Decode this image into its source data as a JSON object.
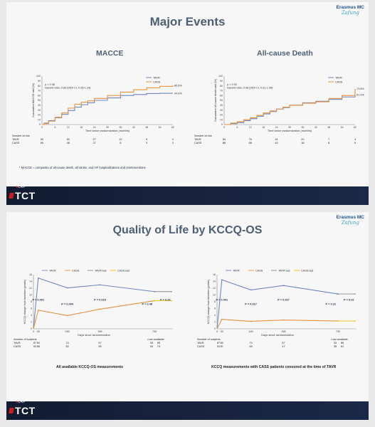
{
  "slide1": {
    "title": "Major Events",
    "logo": {
      "line1": "Erasmus MC",
      "line2": "Zafung"
    },
    "footer": {
      "crf": "CRF",
      "tct": "TCT"
    },
    "footnote": "*  MACCE = composite of all-cause death, all stroke, and HF hospitalizations and reinterventions"
  },
  "slide2": {
    "title": "Quality of Life by KCCQ-OS",
    "logo": {
      "line1": "Erasmus MC",
      "line2": "Zafung"
    },
    "footer": {
      "crf": "CRF",
      "tct": "TCT"
    },
    "caption_left": "All available KCCQ-OS measurements",
    "caption_right": "KCCQ measurements with CASS patients censored at the time of TAVR"
  },
  "colors": {
    "tavr": "#6d86c2",
    "cass": "#e8913d",
    "last": "#f2c200",
    "title": "#4c5f74"
  },
  "chart_data": [
    {
      "type": "line",
      "title": "MACCE",
      "ylabel": "Cumulative MACCE rate (%)",
      "xlabel": "Time since randomization (months)",
      "stats": [
        "p = 0.36",
        "Hazard ratio, 0.83 (95% CI, 0.56-1.24)"
      ],
      "legend": [
        "TAVR",
        "CASS"
      ],
      "end_labels": [
        "80.6%",
        "64.6%"
      ],
      "xlim": [
        0,
        60
      ],
      "ylim": [
        0,
        100
      ],
      "xticks": [
        0,
        6,
        12,
        18,
        24,
        30,
        36,
        42,
        48,
        54,
        60
      ],
      "yticks": [
        0,
        10,
        20,
        30,
        40,
        50,
        60,
        70,
        80,
        90,
        100
      ],
      "series": [
        {
          "name": "TAVR",
          "x": [
            0,
            1,
            3,
            6,
            9,
            12,
            15,
            18,
            21,
            24,
            30,
            36,
            42,
            48,
            54,
            60
          ],
          "y": [
            0,
            3,
            8,
            14,
            21,
            29,
            36,
            41,
            45,
            50,
            55,
            60,
            62,
            64,
            64.6,
            64.6
          ]
        },
        {
          "name": "CASS",
          "x": [
            0,
            1,
            3,
            6,
            9,
            12,
            15,
            18,
            21,
            24,
            30,
            36,
            42,
            48,
            54,
            60
          ],
          "y": [
            0,
            2,
            7,
            15,
            24,
            34,
            42,
            46,
            49,
            54,
            60,
            67,
            72,
            76,
            79,
            80.6
          ]
        }
      ],
      "risk_table": {
        "title": "Number at risk",
        "rows": [
          {
            "label": "TAVR",
            "values": [
              "60",
              "60",
              "27",
              "12",
              "5",
              "2"
            ]
          },
          {
            "label": "CASS",
            "values": [
              "60",
              "46",
              "27",
              "8",
              "3",
              "2"
            ]
          }
        ]
      }
    },
    {
      "type": "line",
      "title": "All-cause Death",
      "ylabel": "Cumulative all-cause death rate (%)",
      "xlabel": "Time since randomization (months)",
      "stats": [
        "p = 0.92",
        "Hazard ratio, 0.96 (95% CI, 0.61-1.56)"
      ],
      "legend": [
        "TAVR",
        "CASS"
      ],
      "end_labels": [
        "73.8%",
        "61.9%"
      ],
      "xlim": [
        0,
        60
      ],
      "ylim": [
        0,
        100
      ],
      "xticks": [
        0,
        6,
        12,
        18,
        24,
        30,
        36,
        42,
        48,
        54,
        60
      ],
      "yticks": [
        0,
        10,
        20,
        30,
        40,
        50,
        60,
        70,
        80,
        90,
        100
      ],
      "series": [
        {
          "name": "TAVR",
          "x": [
            0,
            3,
            6,
            9,
            12,
            15,
            18,
            21,
            24,
            27,
            30,
            36,
            42,
            48,
            54,
            60
          ],
          "y": [
            0,
            2,
            4,
            8,
            12,
            17,
            22,
            27,
            32,
            35,
            40,
            45,
            48,
            52,
            57,
            61.9
          ]
        },
        {
          "name": "CASS",
          "x": [
            0,
            3,
            6,
            9,
            12,
            15,
            18,
            21,
            24,
            27,
            30,
            36,
            42,
            48,
            54,
            60
          ],
          "y": [
            0,
            3,
            6,
            10,
            14,
            19,
            24,
            28,
            32,
            36,
            40,
            44,
            47,
            54,
            60,
            73.8
          ]
        }
      ],
      "risk_table": {
        "title": "Number at risk",
        "rows": [
          {
            "label": "TAVR",
            "values": [
              "84",
              "76",
              "41",
              "20",
              "7",
              "3"
            ]
          },
          {
            "label": "CASS",
            "values": [
              "88",
              "68",
              "42",
              "18",
              "8",
              "5"
            ]
          }
        ]
      }
    },
    {
      "type": "line",
      "ylabel": "KCCQ change from baseline (points)",
      "xlabel": "Days since randomization",
      "legend": [
        "TAVR",
        "CASS",
        "TAVR last",
        "CASS last"
      ],
      "xticks": [
        "0",
        "30",
        "180",
        "365",
        "730"
      ],
      "ylim": [
        0,
        16
      ],
      "yticks": [
        0,
        2,
        4,
        6,
        8,
        10,
        12,
        14,
        16
      ],
      "series": [
        {
          "name": "TAVR",
          "x": [
            0,
            30,
            180,
            365,
            730
          ],
          "y": [
            0,
            15,
            12.1,
            13,
            11
          ]
        },
        {
          "name": "CASS",
          "x": [
            0,
            30,
            180,
            365,
            730
          ],
          "y": [
            0,
            5.5,
            3.9,
            5.8,
            8.3
          ]
        },
        {
          "name": "TAVR last",
          "x": [
            730,
            830
          ],
          "y": [
            11,
            11
          ]
        },
        {
          "name": "CASS last",
          "x": [
            730,
            830
          ],
          "y": [
            8.3,
            8.3
          ]
        }
      ],
      "p_values": [
        {
          "text": "P = 0.001",
          "day": 30
        },
        {
          "text": "P = 0.004",
          "day": 180
        },
        {
          "text": "P = 0.018",
          "day": 365
        },
        {
          "text": "P = 0.48",
          "day": 700
        },
        {
          "text": "P = 0.20",
          "day": 790
        }
      ],
      "subjects_table": {
        "title": "Number of subjects",
        "last_title": "Last available",
        "rows": [
          {
            "label": "TAVR",
            "values": [
              "87",
              "80",
              "74",
              "67"
            ],
            "last": "33",
            "last2": "85"
          },
          {
            "label": "CASS",
            "values": [
              "92",
              "88",
              "82",
              "59"
            ],
            "last": "54",
            "last2": "74"
          }
        ]
      }
    },
    {
      "type": "line",
      "ylabel": "KCCQ change from baseline (points)",
      "xlabel": "Days since randomization",
      "legend": [
        "TAVR",
        "CASS",
        "TAVR last",
        "CASS last"
      ],
      "xticks": [
        "0",
        "30",
        "180",
        "365",
        "730"
      ],
      "ylim": [
        0,
        16
      ],
      "yticks": [
        0,
        2,
        4,
        6,
        8,
        10,
        12,
        14,
        16
      ],
      "series": [
        {
          "name": "TAVR",
          "x": [
            0,
            30,
            180,
            365,
            730
          ],
          "y": [
            0,
            14.5,
            11.5,
            12.8,
            10.3
          ]
        },
        {
          "name": "CASS",
          "x": [
            0,
            30,
            180,
            365,
            730
          ],
          "y": [
            0,
            2.8,
            2.2,
            2.6,
            2.3
          ]
        },
        {
          "name": "TAVR last",
          "x": [
            730,
            830
          ],
          "y": [
            10.3,
            10.3
          ]
        },
        {
          "name": "CASS last",
          "x": [
            730,
            830
          ],
          "y": [
            2.3,
            2.3
          ]
        }
      ],
      "p_values": [
        {
          "text": "P < 0.001",
          "day": 30
        },
        {
          "text": "P = 0.017",
          "day": 180
        },
        {
          "text": "P = 0.017",
          "day": 365
        },
        {
          "text": "P = 0.22",
          "day": 700
        },
        {
          "text": "P = 0.02",
          "day": 790
        }
      ],
      "subjects_table": {
        "title": "Number of subjects",
        "last_title": "Last available",
        "rows": [
          {
            "label": "TAVR",
            "values": [
              "87",
              "80",
              "74",
              "67"
            ],
            "last": "33",
            "last2": "85"
          },
          {
            "label": "CASS",
            "values": [
              "92",
              "87",
              "83",
              "47"
            ],
            "last": "35",
            "last2": "61"
          }
        ]
      }
    }
  ]
}
